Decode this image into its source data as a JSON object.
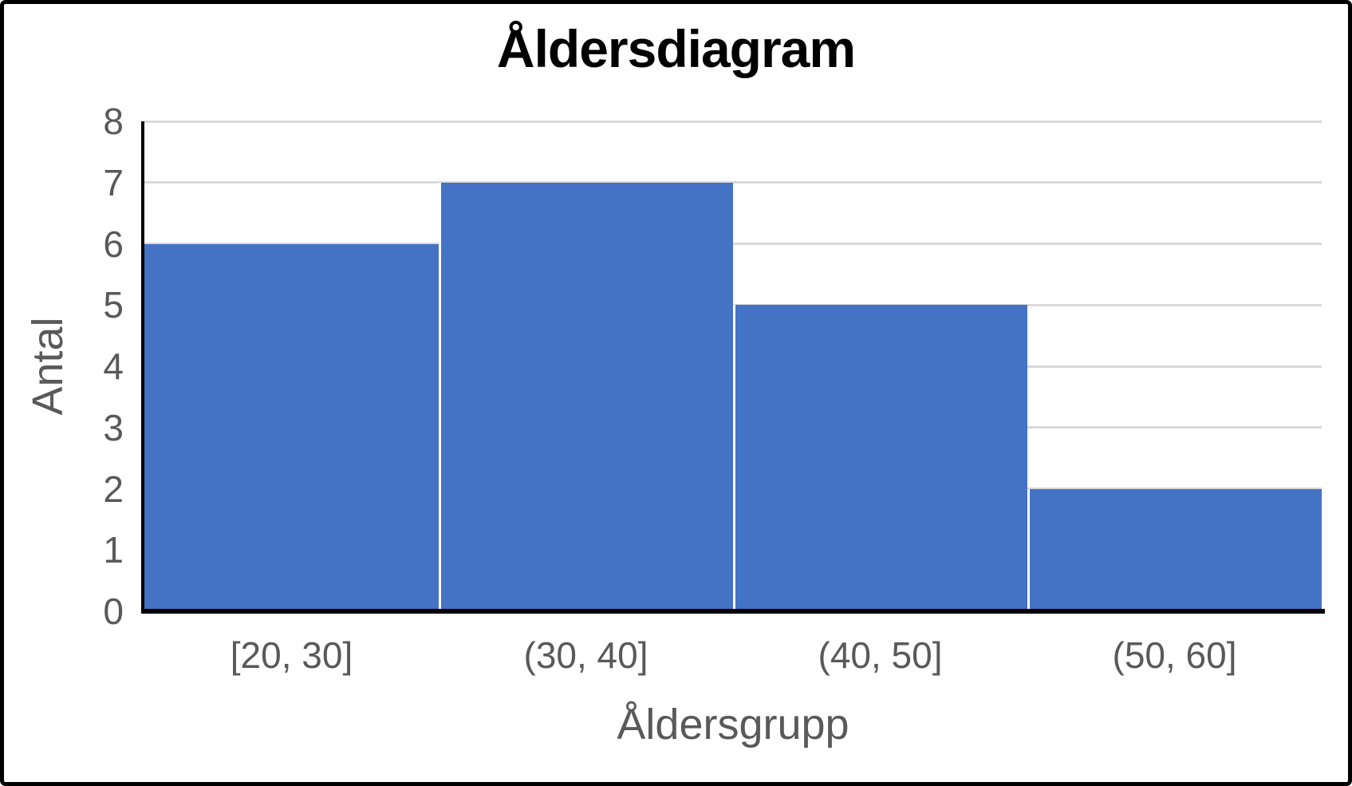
{
  "chart_data": {
    "type": "bar",
    "subtype": "histogram",
    "title": "Åldersdiagram",
    "xlabel": "Åldersgrupp",
    "ylabel": "Antal",
    "categories": [
      "[20, 30]",
      "(30, 40]",
      "(40, 50]",
      "(50, 60]"
    ],
    "values": [
      6,
      7,
      5,
      2
    ],
    "ylim": [
      0,
      8
    ],
    "yticks": [
      0,
      1,
      2,
      3,
      4,
      5,
      6,
      7,
      8
    ],
    "grid": true,
    "legend": false,
    "colors": {
      "bar": "#4472C4",
      "bar_separator": "#FFFFFF",
      "axis": "#000000",
      "gridline": "#D9D9D9",
      "tick_label": "#595959",
      "axis_title": "#595959",
      "title": "#000000",
      "background": "#FFFFFF",
      "frame_border": "#000000"
    }
  }
}
